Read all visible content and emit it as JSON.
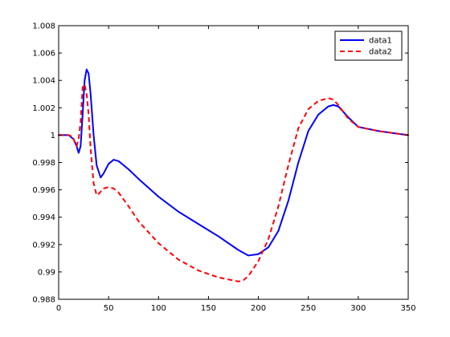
{
  "chart_data": {
    "type": "line",
    "title": "",
    "xlabel": "",
    "ylabel": "",
    "xlim": [
      0,
      350
    ],
    "ylim": [
      0.988,
      1.008
    ],
    "xticks": [
      0,
      50,
      100,
      150,
      200,
      250,
      300,
      350
    ],
    "xtick_labels": [
      "0",
      "50",
      "100",
      "150",
      "200",
      "250",
      "300",
      "350"
    ],
    "yticks": [
      0.988,
      0.99,
      0.992,
      0.994,
      0.996,
      0.998,
      1,
      1.002,
      1.004,
      1.006,
      1.008
    ],
    "ytick_labels": [
      "0.988",
      "0.99",
      "0.992",
      "0.994",
      "0.996",
      "0.998",
      "1",
      "1.002",
      "1.004",
      "1.006",
      "1.008"
    ],
    "grid": false,
    "legend_position": "top-right",
    "series": [
      {
        "name": "data1",
        "color": "#0000ff",
        "style": "solid",
        "x": [
          0,
          10,
          15,
          18,
          20,
          22,
          24,
          26,
          28,
          30,
          32,
          35,
          38,
          42,
          45,
          50,
          55,
          60,
          70,
          80,
          100,
          120,
          140,
          160,
          180,
          190,
          200,
          210,
          220,
          230,
          240,
          250,
          260,
          270,
          275,
          280,
          290,
          300,
          320,
          340,
          350
        ],
        "y": [
          1.0,
          1.0,
          0.9997,
          0.9992,
          0.9987,
          0.9992,
          1.0015,
          1.004,
          1.0048,
          1.0045,
          1.003,
          1.0,
          0.9978,
          0.9969,
          0.9972,
          0.9979,
          0.9982,
          0.9981,
          0.9975,
          0.9968,
          0.9955,
          0.9944,
          0.9935,
          0.9926,
          0.9916,
          0.9912,
          0.9913,
          0.9918,
          0.993,
          0.9952,
          0.998,
          1.0003,
          1.0015,
          1.0021,
          1.0022,
          1.0021,
          1.0013,
          1.0006,
          1.0003,
          1.0001,
          1.0
        ]
      },
      {
        "name": "data2",
        "color": "#ff0000",
        "style": "dashed",
        "x": [
          0,
          10,
          14,
          16,
          18,
          20,
          22,
          24,
          26,
          28,
          30,
          32,
          35,
          38,
          40,
          45,
          50,
          55,
          60,
          70,
          80,
          100,
          120,
          140,
          160,
          180,
          185,
          190,
          200,
          210,
          220,
          230,
          240,
          250,
          260,
          270,
          275,
          280,
          290,
          300,
          320,
          340,
          350
        ],
        "y": [
          1.0,
          1.0,
          0.9999,
          0.9995,
          0.9992,
          0.9997,
          1.001,
          1.0035,
          1.0037,
          1.003,
          1.0015,
          0.999,
          0.9965,
          0.9956,
          0.9957,
          0.9961,
          0.9962,
          0.9961,
          0.9958,
          0.9948,
          0.9937,
          0.9921,
          0.9909,
          0.9901,
          0.9896,
          0.9893,
          0.9894,
          0.9897,
          0.9908,
          0.9924,
          0.9948,
          0.9978,
          1.0005,
          1.0019,
          1.0025,
          1.0027,
          1.0026,
          1.0022,
          1.0012,
          1.0006,
          1.0003,
          1.0001,
          1.0
        ]
      }
    ]
  }
}
